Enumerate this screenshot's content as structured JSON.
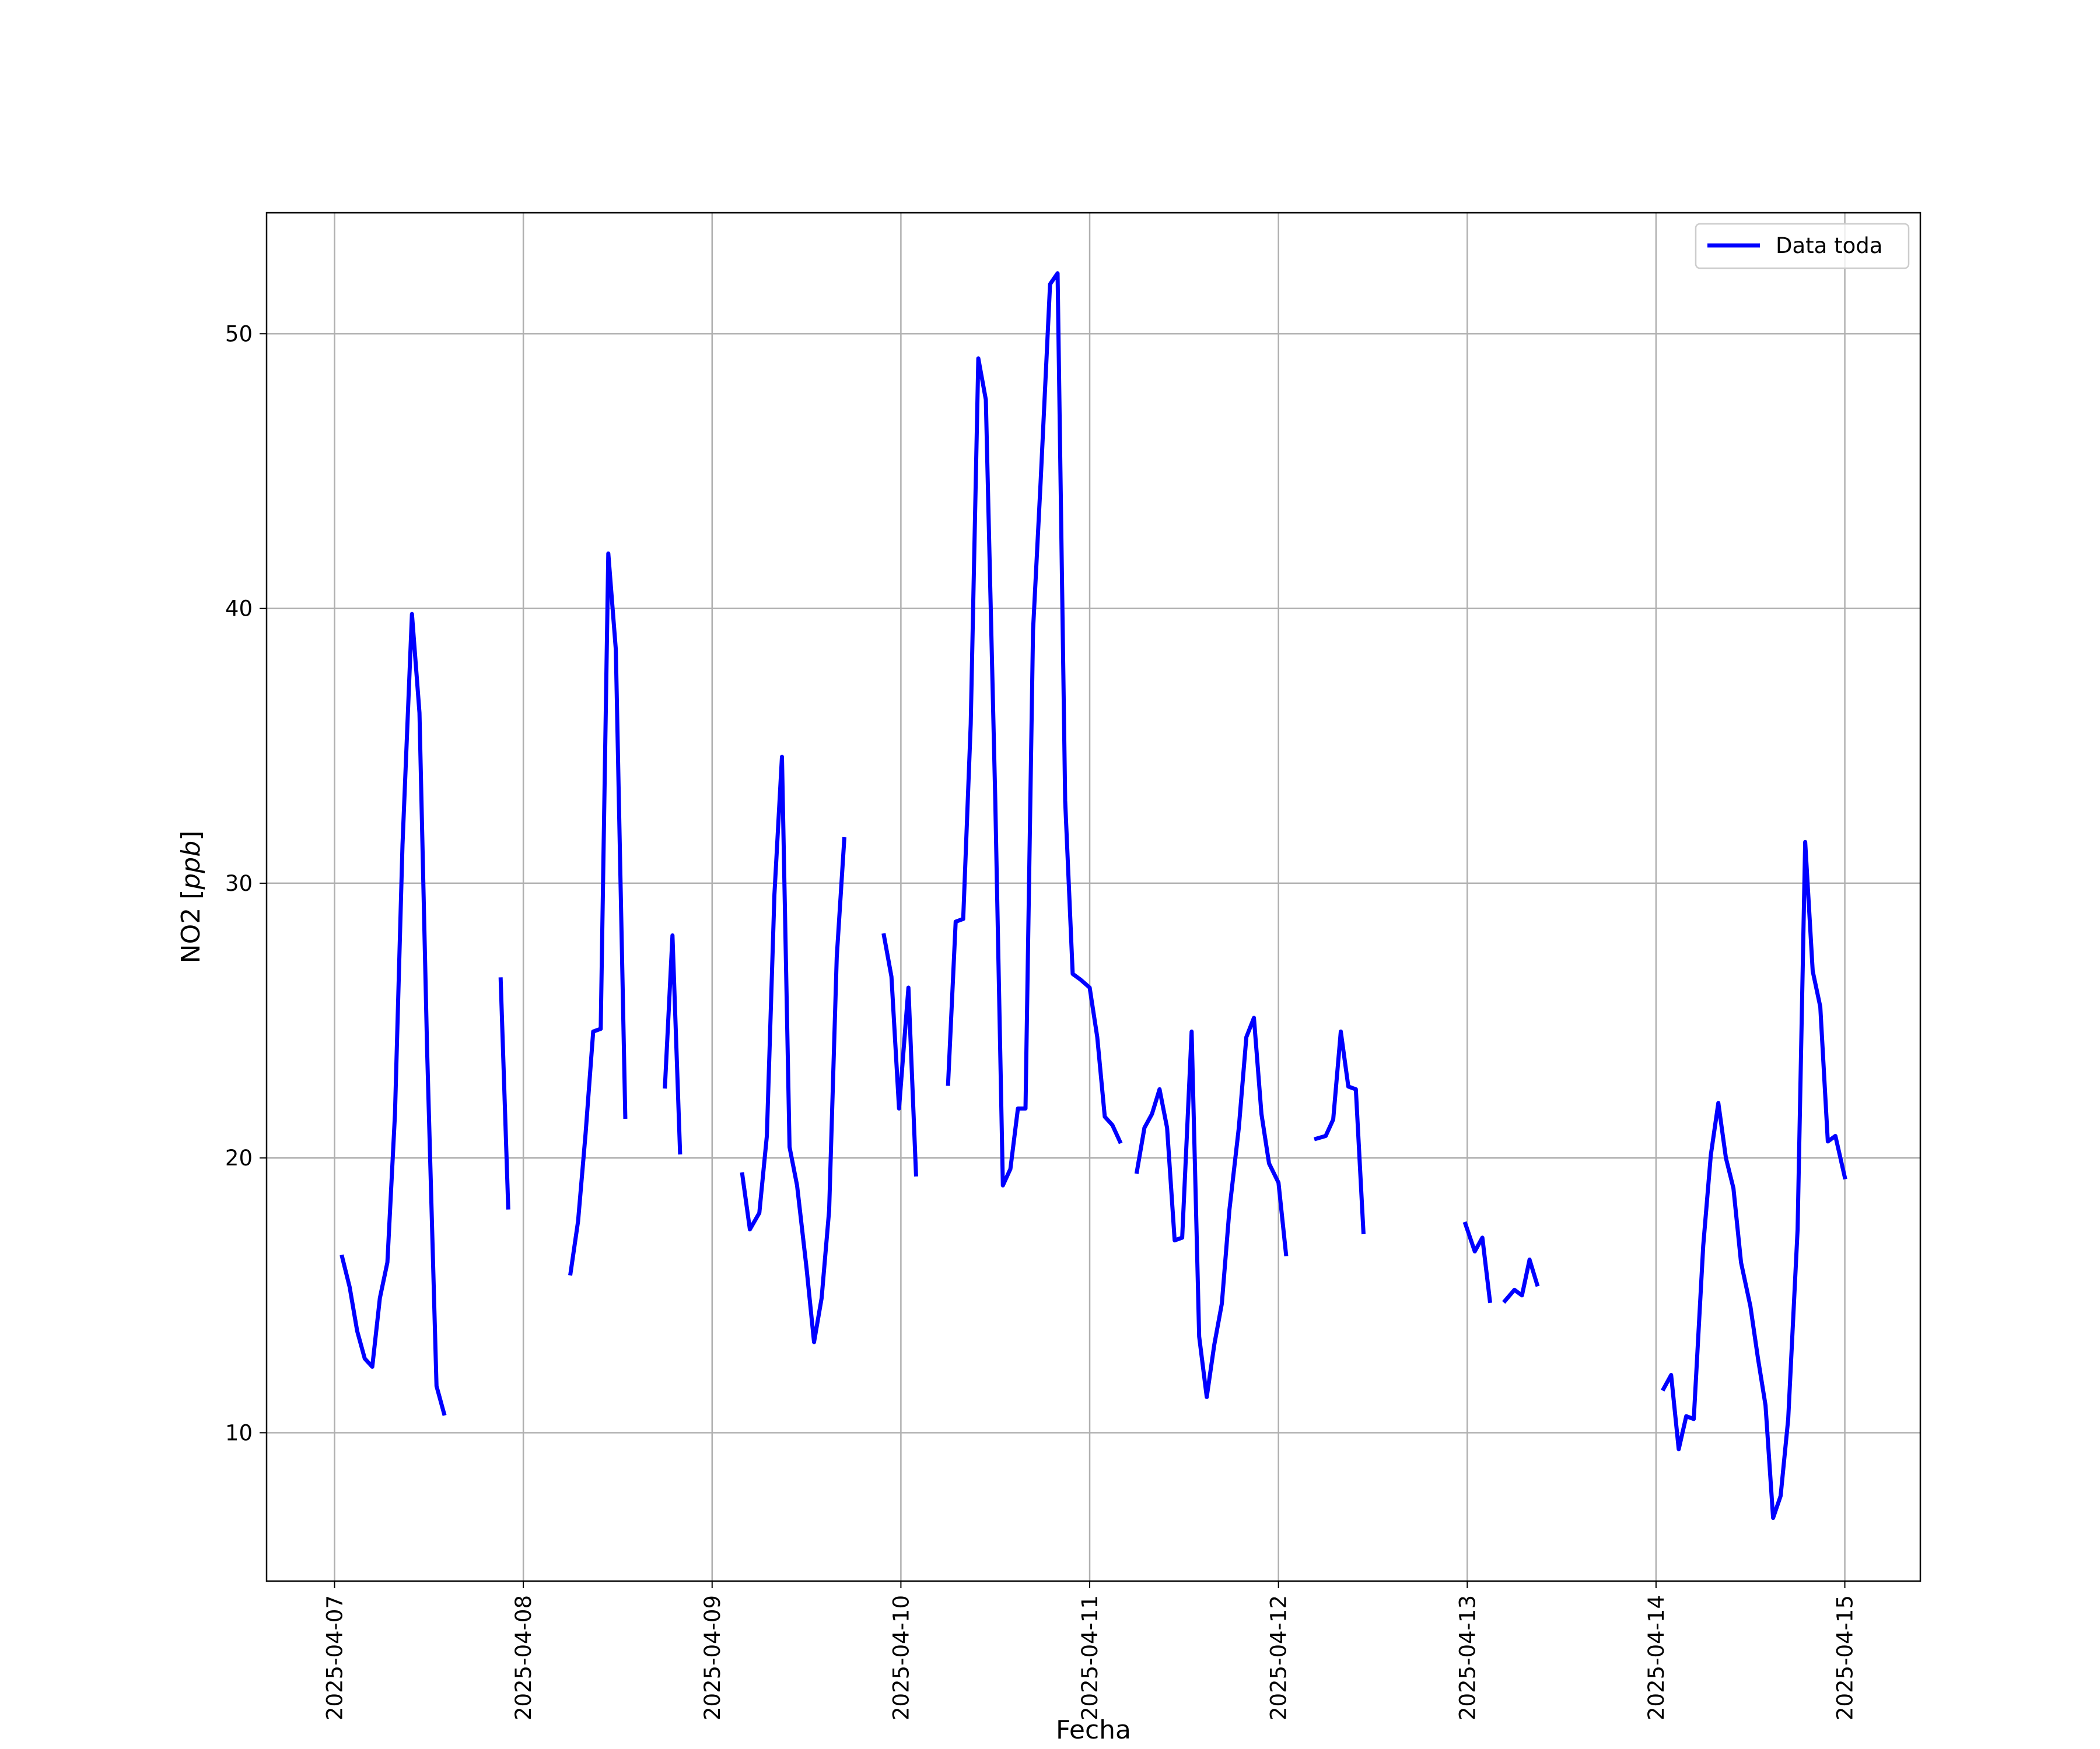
{
  "chart_data": {
    "type": "line",
    "title": "",
    "xlabel": "Fecha",
    "ylabel_main": "NO2 [",
    "ylabel_unit": "ppb",
    "ylabel_close": "]",
    "x_tick_labels": [
      "2025-04-07",
      "2025-04-08",
      "2025-04-09",
      "2025-04-10",
      "2025-04-11",
      "2025-04-12",
      "2025-04-13",
      "2025-04-14",
      "2025-04-15"
    ],
    "y_tick_labels": [
      "10",
      "20",
      "30",
      "40",
      "50"
    ],
    "y_ticks": [
      10,
      20,
      30,
      40,
      50
    ],
    "xlim": [
      -0.36,
      8.4
    ],
    "ylim": [
      4.6,
      54.4
    ],
    "grid": true,
    "legend_position": "top-right",
    "series": [
      {
        "name": "Data toda",
        "color": "#0000ff",
        "segments": [
          [
            [
              0.04,
              16.4
            ],
            [
              0.08,
              15.3
            ],
            [
              0.12,
              13.7
            ],
            [
              0.16,
              12.7
            ],
            [
              0.2,
              12.4
            ],
            [
              0.24,
              14.9
            ],
            [
              0.28,
              16.2
            ],
            [
              0.32,
              21.6
            ],
            [
              0.36,
              31.4
            ],
            [
              0.41,
              39.8
            ],
            [
              0.45,
              36.2
            ],
            [
              0.49,
              24.0
            ],
            [
              0.54,
              11.7
            ],
            [
              0.58,
              10.7
            ]
          ],
          [
            [
              0.88,
              26.5
            ],
            [
              0.92,
              18.2
            ]
          ],
          [
            [
              1.25,
              15.8
            ],
            [
              1.29,
              17.7
            ],
            [
              1.33,
              20.9
            ],
            [
              1.37,
              24.6
            ],
            [
              1.41,
              24.7
            ],
            [
              1.45,
              42.0
            ],
            [
              1.49,
              38.5
            ],
            [
              1.54,
              21.5
            ]
          ],
          [
            [
              1.75,
              22.6
            ],
            [
              1.79,
              28.1
            ],
            [
              1.83,
              20.2
            ]
          ],
          [
            [
              2.16,
              19.4
            ],
            [
              2.2,
              17.4
            ],
            [
              2.25,
              18.0
            ],
            [
              2.29,
              20.8
            ],
            [
              2.33,
              29.6
            ],
            [
              2.37,
              34.6
            ],
            [
              2.41,
              20.4
            ],
            [
              2.45,
              19.0
            ],
            [
              2.5,
              16.0
            ],
            [
              2.54,
              13.3
            ],
            [
              2.58,
              14.9
            ],
            [
              2.62,
              18.1
            ],
            [
              2.66,
              27.3
            ],
            [
              2.7,
              31.6
            ]
          ],
          [
            [
              2.91,
              28.1
            ],
            [
              2.95,
              26.6
            ],
            [
              2.99,
              21.8
            ],
            [
              3.04,
              26.2
            ],
            [
              3.08,
              19.4
            ]
          ],
          [
            [
              3.25,
              22.7
            ],
            [
              3.29,
              28.6
            ],
            [
              3.33,
              28.7
            ],
            [
              3.37,
              35.8
            ],
            [
              3.41,
              49.1
            ],
            [
              3.45,
              47.6
            ],
            [
              3.5,
              33.0
            ],
            [
              3.54,
              19.0
            ],
            [
              3.58,
              19.6
            ],
            [
              3.62,
              21.8
            ],
            [
              3.66,
              21.8
            ],
            [
              3.7,
              39.2
            ],
            [
              3.74,
              44.6
            ],
            [
              3.79,
              51.8
            ],
            [
              3.83,
              52.2
            ],
            [
              3.87,
              33.0
            ],
            [
              3.91,
              26.7
            ],
            [
              3.95,
              26.5
            ],
            [
              4.0,
              26.2
            ],
            [
              4.04,
              24.4
            ],
            [
              4.08,
              21.5
            ],
            [
              4.12,
              21.2
            ],
            [
              4.16,
              20.6
            ]
          ],
          [
            [
              4.25,
              19.5
            ],
            [
              4.29,
              21.1
            ],
            [
              4.33,
              21.6
            ],
            [
              4.37,
              22.5
            ],
            [
              4.41,
              21.1
            ],
            [
              4.45,
              17.0
            ],
            [
              4.49,
              17.1
            ],
            [
              4.54,
              24.6
            ],
            [
              4.58,
              13.5
            ],
            [
              4.62,
              11.3
            ],
            [
              4.66,
              13.2
            ],
            [
              4.7,
              14.7
            ],
            [
              4.74,
              18.1
            ],
            [
              4.79,
              21.1
            ],
            [
              4.83,
              24.4
            ],
            [
              4.87,
              25.1
            ],
            [
              4.91,
              21.6
            ],
            [
              4.95,
              19.8
            ],
            [
              5.0,
              19.1
            ],
            [
              5.04,
              16.5
            ]
          ],
          [
            [
              5.2,
              20.7
            ],
            [
              5.25,
              20.8
            ],
            [
              5.29,
              21.4
            ],
            [
              5.33,
              24.6
            ],
            [
              5.37,
              22.6
            ],
            [
              5.41,
              22.5
            ],
            [
              5.45,
              17.3
            ]
          ],
          [
            [
              5.99,
              17.6
            ],
            [
              6.04,
              16.6
            ],
            [
              6.08,
              17.1
            ],
            [
              6.12,
              14.8
            ]
          ],
          [
            [
              6.2,
              14.8
            ],
            [
              6.25,
              15.2
            ],
            [
              6.29,
              15.0
            ],
            [
              6.33,
              16.3
            ],
            [
              6.37,
              15.4
            ]
          ],
          [
            [
              7.04,
              11.6
            ],
            [
              7.08,
              12.1
            ],
            [
              7.12,
              9.4
            ],
            [
              7.16,
              10.6
            ],
            [
              7.2,
              10.5
            ],
            [
              7.25,
              16.8
            ],
            [
              7.29,
              20.1
            ],
            [
              7.33,
              22.0
            ],
            [
              7.37,
              20.0
            ],
            [
              7.41,
              18.9
            ],
            [
              7.45,
              16.2
            ],
            [
              7.5,
              14.6
            ],
            [
              7.54,
              12.7
            ],
            [
              7.58,
              11.0
            ],
            [
              7.62,
              6.9
            ],
            [
              7.66,
              7.7
            ],
            [
              7.7,
              10.5
            ],
            [
              7.75,
              17.4
            ],
            [
              7.79,
              31.5
            ],
            [
              7.83,
              26.8
            ],
            [
              7.87,
              25.5
            ],
            [
              7.91,
              20.6
            ],
            [
              7.95,
              20.8
            ],
            [
              8.0,
              19.3
            ]
          ]
        ]
      }
    ]
  }
}
